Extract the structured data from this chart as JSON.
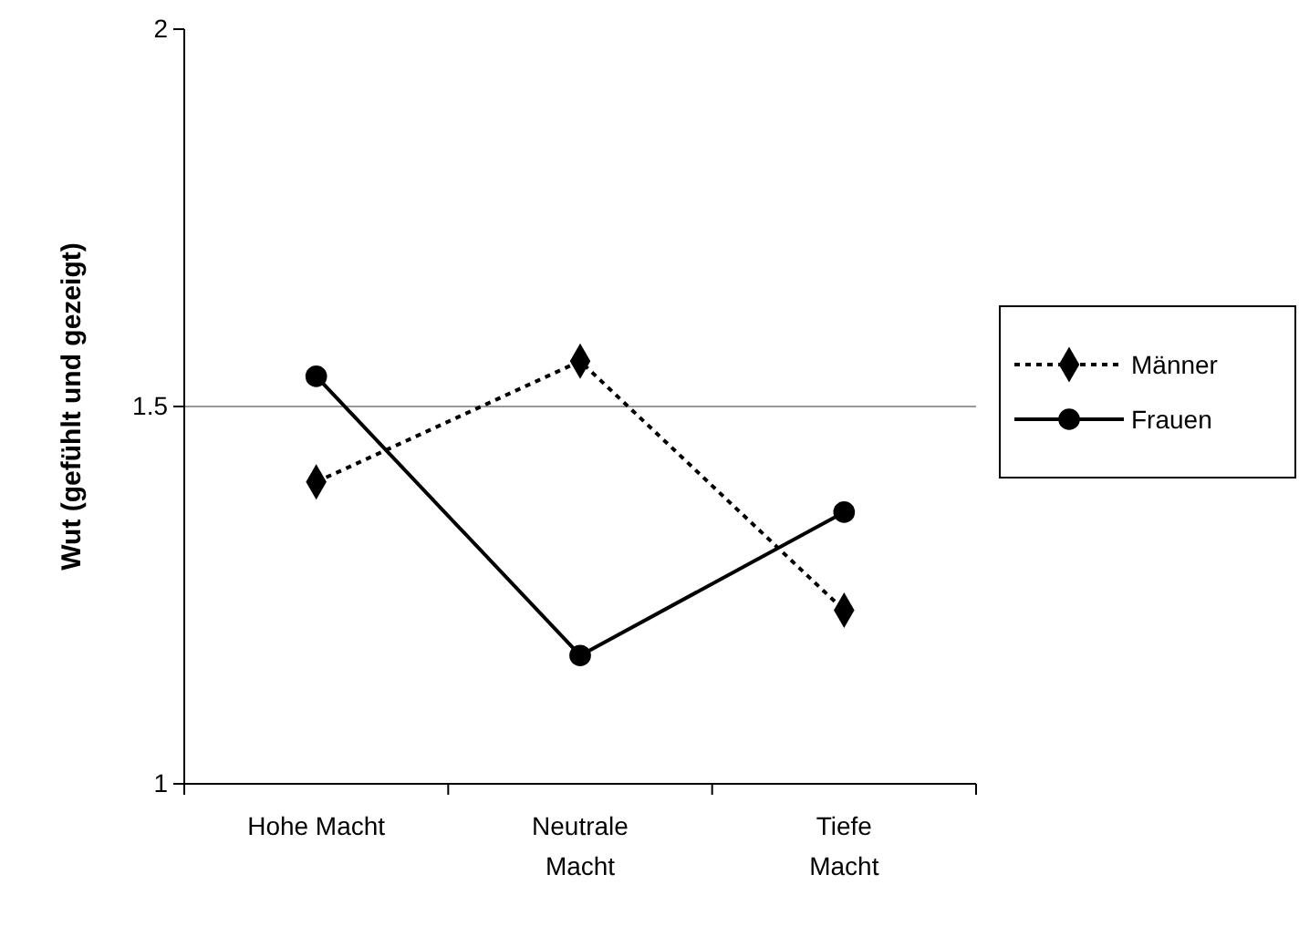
{
  "chart_data": {
    "type": "line",
    "ylabel": "Wut (gefühlt und gezeigt)",
    "categories": [
      "Hohe Macht",
      "Neutrale Macht",
      "Tiefe Macht"
    ],
    "series": [
      {
        "name": "Männer",
        "color": "#000000",
        "values": [
          1.4,
          1.56,
          1.23
        ],
        "marker": "diamond",
        "line_style": "dotted"
      },
      {
        "name": "Frauen",
        "color": "#000000",
        "values": [
          1.54,
          1.17,
          1.36
        ],
        "marker": "circle",
        "line_style": "solid"
      }
    ],
    "ylim": [
      1,
      2
    ],
    "yticks": [
      1,
      1.5,
      2
    ],
    "grid": "y",
    "legend": "right"
  }
}
